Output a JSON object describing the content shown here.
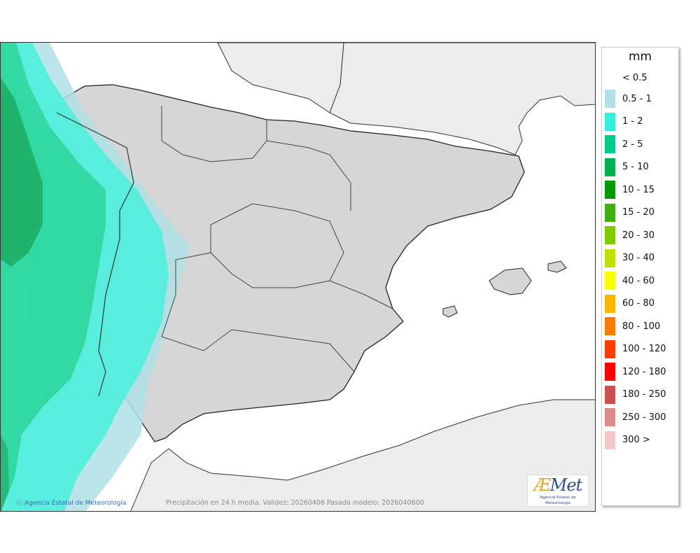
{
  "legend": {
    "unit": "mm",
    "first_label": "< 0.5",
    "items": [
      {
        "label": "0.5 - 1",
        "color": "#b0e0e6"
      },
      {
        "label": "1 - 2",
        "color": "#30f0d8"
      },
      {
        "label": "2 - 5",
        "color": "#00cc88"
      },
      {
        "label": "5 - 10",
        "color": "#00b050"
      },
      {
        "label": "10 - 15",
        "color": "#009900"
      },
      {
        "label": "15 - 20",
        "color": "#40b010"
      },
      {
        "label": "20 - 30",
        "color": "#80cc00"
      },
      {
        "label": "30 - 40",
        "color": "#c0e000"
      },
      {
        "label": "40 - 60",
        "color": "#ffff00"
      },
      {
        "label": "60 - 80",
        "color": "#ffb400"
      },
      {
        "label": "80 - 100",
        "color": "#ff7a00"
      },
      {
        "label": "100 - 120",
        "color": "#ff3c00"
      },
      {
        "label": "120 - 180",
        "color": "#ff0000"
      },
      {
        "label": "180 - 250",
        "color": "#cc5050"
      },
      {
        "label": "250 - 300",
        "color": "#dc8c8c"
      },
      {
        "label": "300 >",
        "color": "#f0c8c8"
      }
    ]
  },
  "map": {
    "credit": "Agencia Estatal de Meteorología",
    "caption": "Precipitación en 24 h media. Validez: 20260406 Pasada modelo: 2026040600",
    "logo_word": "Met",
    "logo_letter": "Æ",
    "logo_sub": "Agencia Estatal de Meteorología",
    "colors": {
      "land_other": "#ececec",
      "land_iberia": "#d8d8d8",
      "sea": "#ffffff"
    }
  }
}
